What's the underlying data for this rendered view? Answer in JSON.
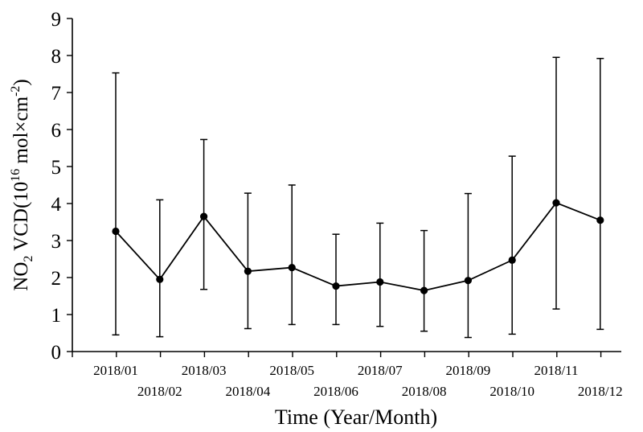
{
  "chart_data": {
    "type": "line",
    "xlabel": "Time (Year/Month)",
    "ylabel": {
      "prefix": "NO",
      "subscript": "2",
      "middle": " VCD(10",
      "superscript": "16",
      "unit": " mol×cm",
      "unit_superscript": "-2",
      "suffix": ")"
    },
    "ylim": [
      0,
      9
    ],
    "yticks": [
      "0",
      "1",
      "2",
      "3",
      "4",
      "5",
      "6",
      "7",
      "8",
      "9"
    ],
    "categories": [
      "2018/01",
      "2018/02",
      "2018/03",
      "2018/04",
      "2018/05",
      "2018/06",
      "2018/07",
      "2018/08",
      "2018/09",
      "2018/10",
      "2018/11",
      "2018/12"
    ],
    "values": [
      3.25,
      1.95,
      3.65,
      2.17,
      2.27,
      1.77,
      1.88,
      1.65,
      1.92,
      2.47,
      4.02,
      3.55
    ],
    "error_low": [
      0.45,
      0.4,
      1.68,
      0.62,
      0.73,
      0.73,
      0.68,
      0.55,
      0.38,
      0.47,
      1.15,
      0.6
    ],
    "error_high": [
      7.53,
      4.1,
      5.73,
      4.28,
      4.5,
      3.17,
      3.47,
      3.27,
      4.27,
      5.28,
      7.95,
      7.92
    ],
    "grid": false,
    "legend": "none",
    "color": "#000000"
  }
}
